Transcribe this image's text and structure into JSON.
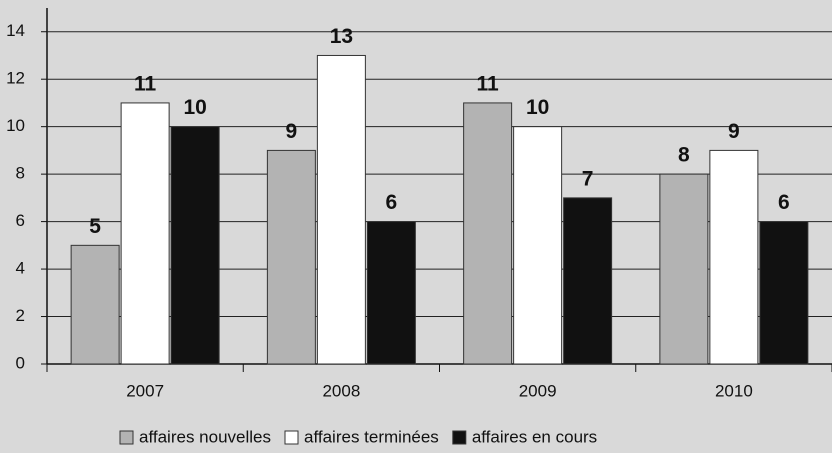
{
  "chart_data": {
    "type": "bar",
    "categories": [
      "2007",
      "2008",
      "2009",
      "2010"
    ],
    "series": [
      {
        "name": "affaires nouvelles",
        "color": "#b3b3b3",
        "values": [
          5,
          9,
          11,
          8
        ]
      },
      {
        "name": "affaires terminées",
        "color": "#ffffff",
        "values": [
          11,
          13,
          10,
          9
        ]
      },
      {
        "name": "affaires en cours",
        "color": "#111111",
        "values": [
          10,
          6,
          7,
          6
        ]
      }
    ],
    "ylim": [
      0,
      15
    ],
    "yticks": [
      0,
      2,
      4,
      6,
      8,
      10,
      12,
      14
    ],
    "grid": true,
    "legend": "bottom"
  }
}
